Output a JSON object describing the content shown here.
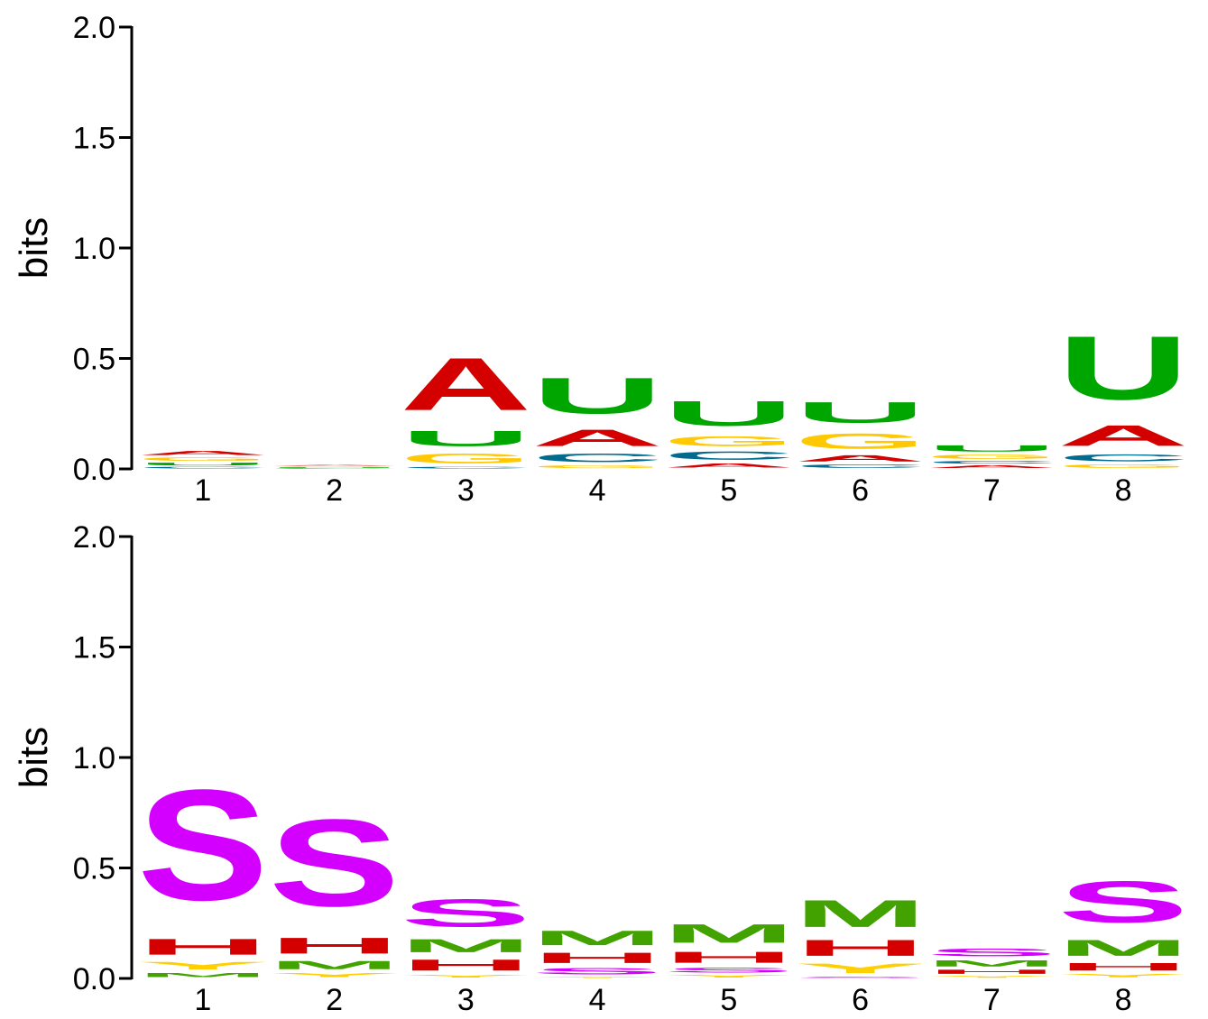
{
  "colors": {
    "A": "#d40000",
    "C": "#006b8f",
    "G": "#ffc800",
    "U": "#00a600",
    "H": "#d40000",
    "M": "#42a300",
    "S": "#d400ff",
    "Y": "#ffcf00",
    "axis": "#000000"
  },
  "chart_data": [
    {
      "type": "sequence-logo",
      "ylabel": "bits",
      "ylim": [
        0,
        2
      ],
      "yticks": [
        "0.0",
        "0.5",
        "1.0",
        "1.5",
        "2.0"
      ],
      "positions": [
        "1",
        "2",
        "3",
        "4",
        "5",
        "6",
        "7",
        "8"
      ],
      "stacks": [
        [
          {
            "letter": "C",
            "height": 0.012
          },
          {
            "letter": "U",
            "height": 0.02
          },
          {
            "letter": "G",
            "height": 0.025
          },
          {
            "letter": "A",
            "height": 0.03
          }
        ],
        [
          {
            "letter": "C",
            "height": 0.004
          },
          {
            "letter": "U",
            "height": 0.005
          },
          {
            "letter": "G",
            "height": 0.004
          },
          {
            "letter": "A",
            "height": 0.006
          }
        ],
        [
          {
            "letter": "C",
            "height": 0.012
          },
          {
            "letter": "G",
            "height": 0.07
          },
          {
            "letter": "U",
            "height": 0.11
          },
          {
            "letter": "A",
            "height": 0.38
          }
        ],
        [
          {
            "letter": "G",
            "height": 0.02
          },
          {
            "letter": "C",
            "height": 0.06
          },
          {
            "letter": "A",
            "height": 0.12
          },
          {
            "letter": "U",
            "height": 0.26
          }
        ],
        [
          {
            "letter": "A",
            "height": 0.03
          },
          {
            "letter": "C",
            "height": 0.06
          },
          {
            "letter": "G",
            "height": 0.07
          },
          {
            "letter": "U",
            "height": 0.18
          }
        ],
        [
          {
            "letter": "C",
            "height": 0.025
          },
          {
            "letter": "A",
            "height": 0.045
          },
          {
            "letter": "G",
            "height": 0.11
          },
          {
            "letter": "U",
            "height": 0.15
          }
        ],
        [
          {
            "letter": "A",
            "height": 0.02
          },
          {
            "letter": "C",
            "height": 0.02
          },
          {
            "letter": "G",
            "height": 0.03
          },
          {
            "letter": "U",
            "height": 0.045
          }
        ],
        [
          {
            "letter": "G",
            "height": 0.025
          },
          {
            "letter": "C",
            "height": 0.05
          },
          {
            "letter": "A",
            "height": 0.15
          },
          {
            "letter": "U",
            "height": 0.46
          }
        ]
      ]
    },
    {
      "type": "sequence-logo",
      "ylabel": "bits",
      "ylim": [
        0,
        2
      ],
      "yticks": [
        "0.0",
        "0.5",
        "1.0",
        "1.5",
        "2.0"
      ],
      "positions": [
        "1",
        "2",
        "3",
        "4",
        "5",
        "6",
        "7",
        "8"
      ],
      "stacks": [
        [
          {
            "letter": "M",
            "height": 0.03
          },
          {
            "letter": "Y",
            "height": 0.055
          },
          {
            "letter": "H",
            "height": 0.115
          },
          {
            "letter": "S",
            "height": 0.8
          }
        ],
        [
          {
            "letter": "Y",
            "height": 0.03
          },
          {
            "letter": "M",
            "height": 0.06
          },
          {
            "letter": "H",
            "height": 0.115
          },
          {
            "letter": "S",
            "height": 0.63
          }
        ],
        [
          {
            "letter": "Y",
            "height": 0.02
          },
          {
            "letter": "H",
            "height": 0.08
          },
          {
            "letter": "M",
            "height": 0.095
          },
          {
            "letter": "S",
            "height": 0.2
          }
        ],
        [
          {
            "letter": "Y",
            "height": 0.01
          },
          {
            "letter": "S",
            "height": 0.045
          },
          {
            "letter": "H",
            "height": 0.075
          },
          {
            "letter": "M",
            "height": 0.105
          }
        ],
        [
          {
            "letter": "Y",
            "height": 0.02
          },
          {
            "letter": "S",
            "height": 0.035
          },
          {
            "letter": "H",
            "height": 0.08
          },
          {
            "letter": "M",
            "height": 0.135
          }
        ],
        [
          {
            "letter": "S",
            "height": 0.01
          },
          {
            "letter": "Y",
            "height": 0.07
          },
          {
            "letter": "H",
            "height": 0.115
          },
          {
            "letter": "M",
            "height": 0.195
          }
        ],
        [
          {
            "letter": "Y",
            "height": 0.015
          },
          {
            "letter": "H",
            "height": 0.03
          },
          {
            "letter": "M",
            "height": 0.045
          },
          {
            "letter": "S",
            "height": 0.055
          }
        ],
        [
          {
            "letter": "Y",
            "height": 0.025
          },
          {
            "letter": "H",
            "height": 0.055
          },
          {
            "letter": "M",
            "height": 0.115
          },
          {
            "letter": "S",
            "height": 0.3
          }
        ]
      ]
    }
  ]
}
